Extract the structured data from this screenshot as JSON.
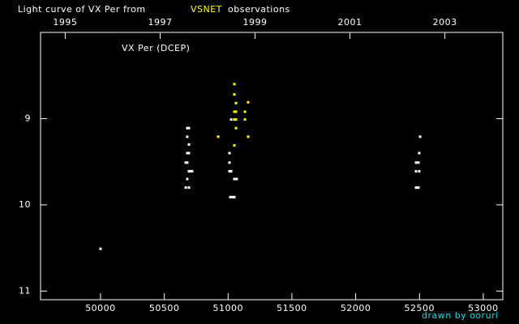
{
  "chart_data": {
    "type": "scatter",
    "title": "Light curve of VX Per from",
    "title_highlight": "VSNET",
    "title_end": "observations",
    "title_highlight_color": "#ffff00",
    "annotation": "VX Per (DCEP)",
    "credit": "drawn by ooruri",
    "credit_color": "#00e0e0",
    "background": "#000000",
    "frame_color": "#ffffff",
    "xlim": [
      49530,
      53153
    ],
    "xticks": [
      50000,
      50500,
      51000,
      51500,
      52000,
      52500,
      53000
    ],
    "x2lim": [
      1994.48,
      2004.22
    ],
    "x2ticks": [
      1995,
      1997,
      1999,
      2001,
      2003
    ],
    "ylim": [
      8.0,
      11.1
    ],
    "y_inverted": true,
    "yticks": [
      9,
      10,
      11
    ],
    "series": [
      {
        "color": "#ffffff",
        "x": [
          50000,
          50680,
          50693,
          50680,
          50693,
          50680,
          50693,
          50668,
          50680,
          50693,
          50706,
          50718,
          50680,
          50668,
          50693,
          51024,
          51011,
          51011,
          51024,
          51049,
          51068,
          51017,
          51036,
          51049,
          51011,
          52505,
          52498,
          52473,
          52492,
          52473,
          52498,
          52473,
          52492
        ],
        "values": [
          10.51,
          9.11,
          9.11,
          9.21,
          9.3,
          9.4,
          9.4,
          9.51,
          9.51,
          9.61,
          9.61,
          9.61,
          9.7,
          9.8,
          9.8,
          9.01,
          9.4,
          9.61,
          9.61,
          9.7,
          9.7,
          9.91,
          9.91,
          9.91,
          9.51,
          9.21,
          9.4,
          9.51,
          9.51,
          9.61,
          9.61,
          9.8,
          9.8
        ]
      },
      {
        "color": "#ffff00",
        "x": [
          50922,
          51049,
          51049,
          51062,
          51049,
          51062,
          51049,
          51062,
          51062,
          51049,
          51157,
          51132,
          51132,
          51157
        ],
        "values": [
          9.21,
          8.6,
          8.72,
          8.82,
          8.92,
          8.92,
          9.01,
          9.01,
          9.11,
          9.31,
          8.81,
          8.92,
          9.01,
          9.21
        ]
      }
    ]
  }
}
